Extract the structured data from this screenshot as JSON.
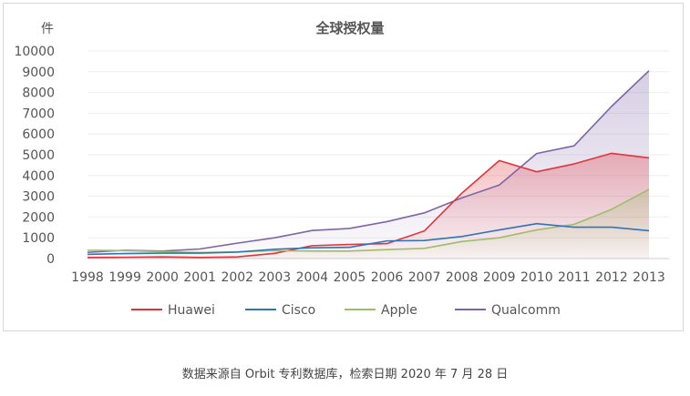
{
  "caption": "数据来源自 Orbit 专利数据库，检索日期 2020 年 7 月 28 日",
  "chart_data": {
    "type": "area",
    "title": "全球授权量",
    "ylabel": "件",
    "xlabel": "",
    "ylim": [
      0,
      10000
    ],
    "yticks": [
      0,
      1000,
      2000,
      3000,
      4000,
      5000,
      6000,
      7000,
      8000,
      9000,
      10000
    ],
    "categories": [
      "1998",
      "1999",
      "2000",
      "2001",
      "2002",
      "2003",
      "2004",
      "2005",
      "2006",
      "2007",
      "2008",
      "2009",
      "2010",
      "2011",
      "2012",
      "2013"
    ],
    "grid": "horizontal",
    "legend_position": "bottom",
    "series": [
      {
        "name": "Huawei",
        "color": "#e0353f",
        "fill": true,
        "values": [
          50,
          60,
          80,
          50,
          80,
          250,
          620,
          680,
          720,
          1330,
          3150,
          4720,
          4180,
          4560,
          5070,
          4850
        ]
      },
      {
        "name": "Cisco",
        "color": "#2f75b5",
        "fill": false,
        "values": [
          200,
          240,
          260,
          260,
          310,
          450,
          520,
          540,
          850,
          870,
          1060,
          1380,
          1680,
          1510,
          1510,
          1340
        ]
      },
      {
        "name": "Apple",
        "color": "#9cbd6a",
        "fill": true,
        "values": [
          400,
          380,
          330,
          290,
          320,
          380,
          360,
          360,
          430,
          490,
          820,
          1000,
          1380,
          1650,
          2370,
          3330
        ]
      },
      {
        "name": "Qualcomm",
        "color": "#7f64a6",
        "fill": true,
        "values": [
          300,
          400,
          360,
          460,
          740,
          1000,
          1350,
          1450,
          1780,
          2200,
          2920,
          3540,
          5060,
          5430,
          7330,
          9050
        ]
      }
    ]
  }
}
